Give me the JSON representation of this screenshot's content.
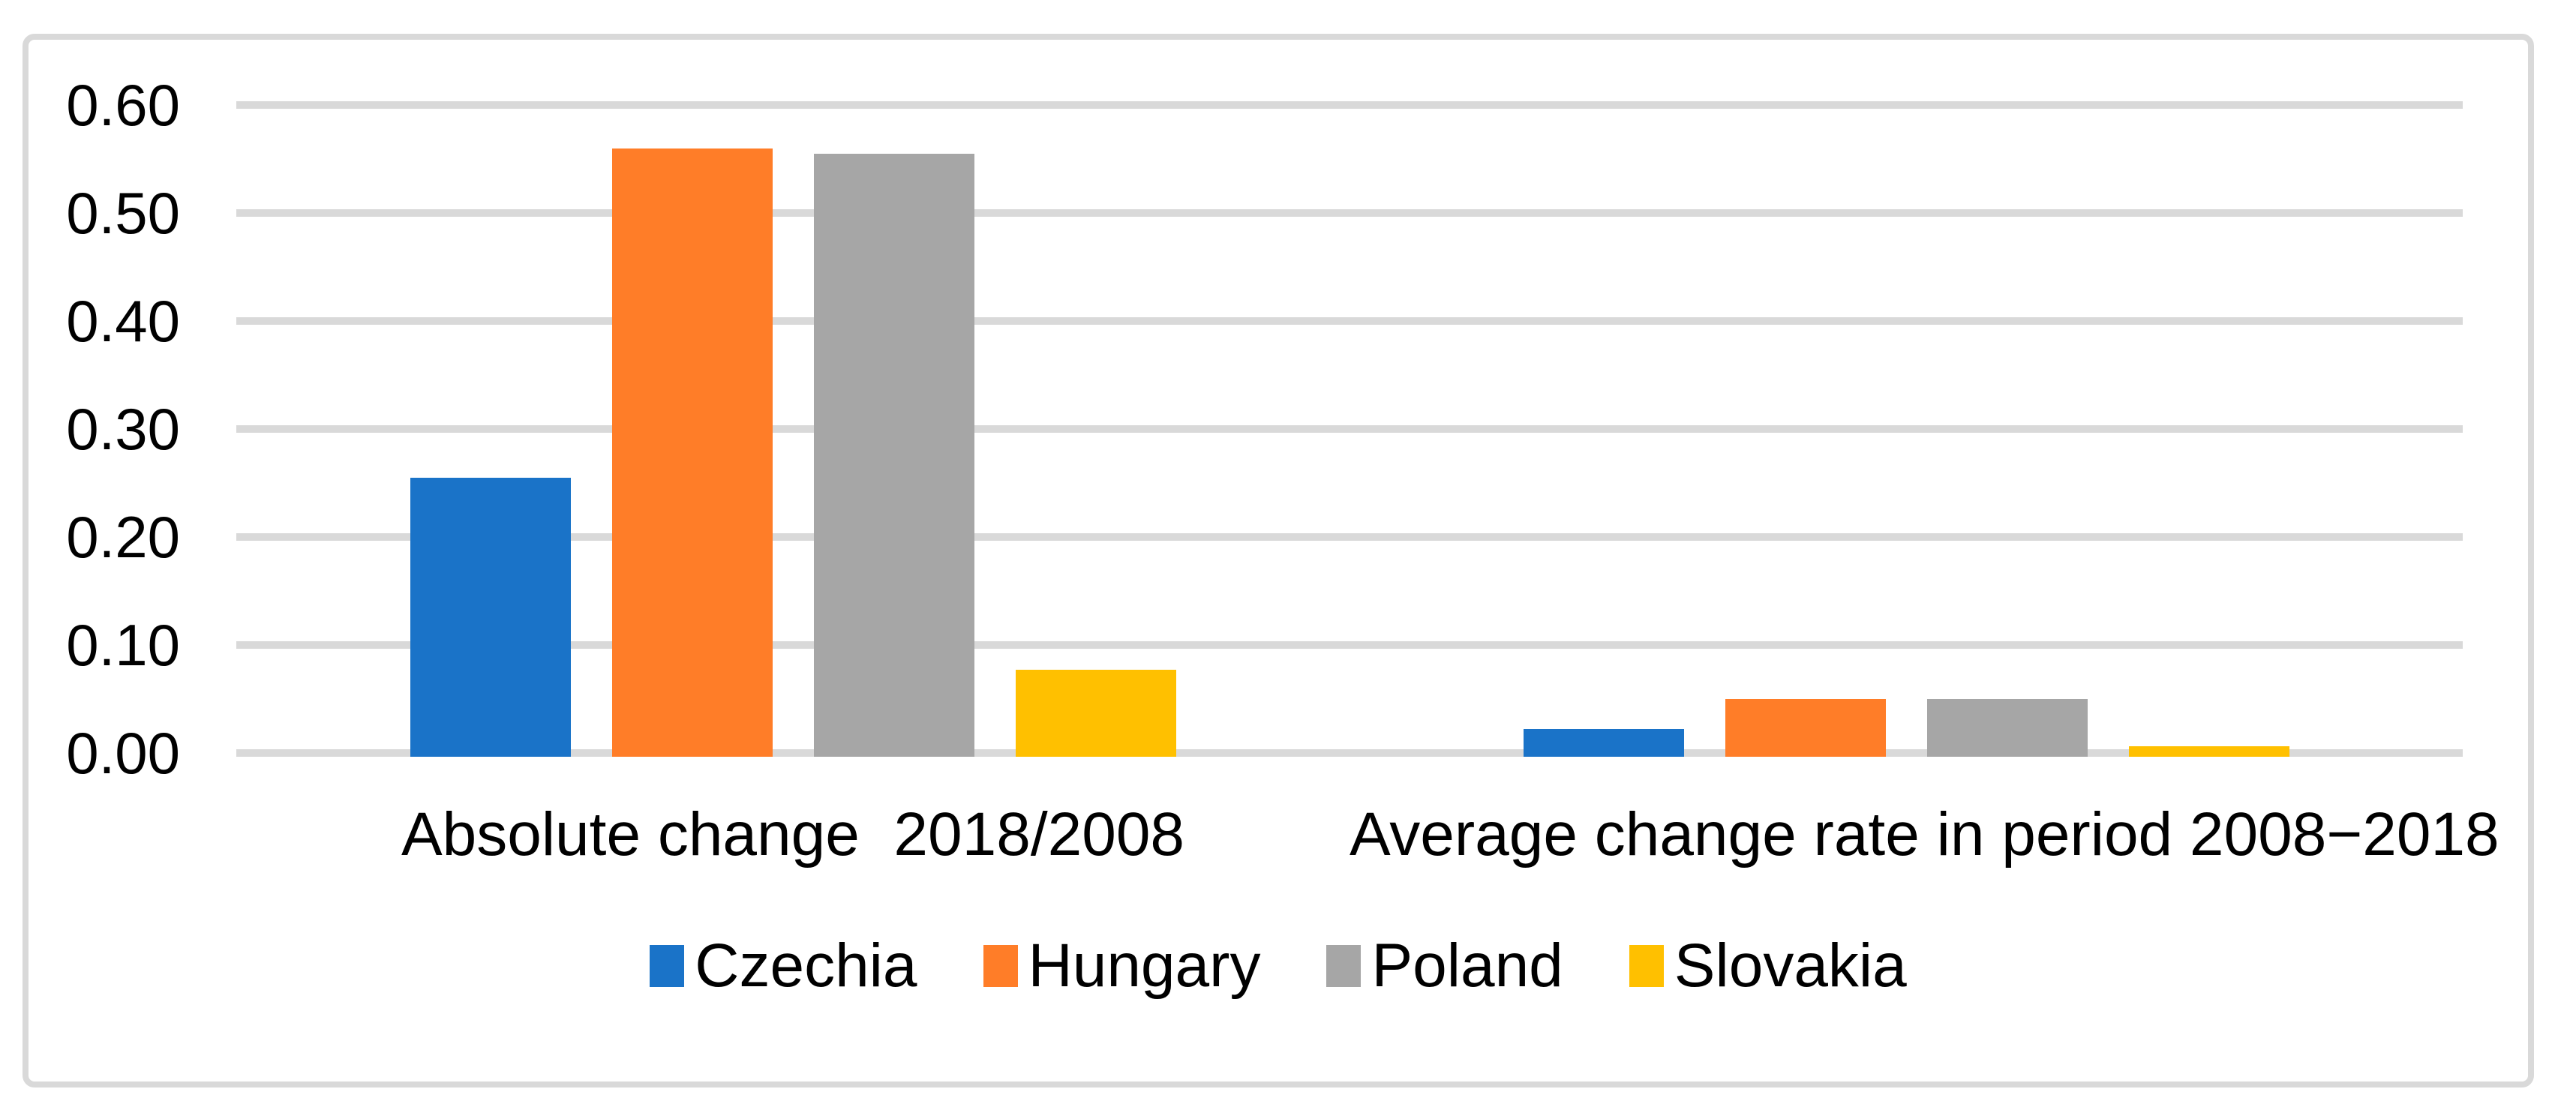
{
  "chart_data": {
    "type": "bar",
    "title": "",
    "categories": [
      "Absolute change  2018/2008",
      "Average change rate in period 2008−2018"
    ],
    "series": [
      {
        "name": "Czechia",
        "color": "#1A73C8",
        "values": [
          0.255,
          0.022
        ]
      },
      {
        "name": "Hungary",
        "color": "#FF7D28",
        "values": [
          0.56,
          0.05
        ]
      },
      {
        "name": "Poland",
        "color": "#A6A6A6",
        "values": [
          0.555,
          0.05
        ]
      },
      {
        "name": "Slovakia",
        "color": "#FFC000",
        "values": [
          0.077,
          0.006
        ]
      }
    ],
    "xlabel": "",
    "ylabel": "",
    "ylim": [
      0,
      0.6
    ],
    "ytick_step": 0.1,
    "yticks": [
      "0.60",
      "0.50",
      "0.40",
      "0.30",
      "0.20",
      "0.10",
      "0.00"
    ],
    "grid": true,
    "gridline_color": "#D9D9D9",
    "frame_color": "#D9D9D9",
    "background_color": "#FFFFFF",
    "legend_position": "bottom"
  }
}
